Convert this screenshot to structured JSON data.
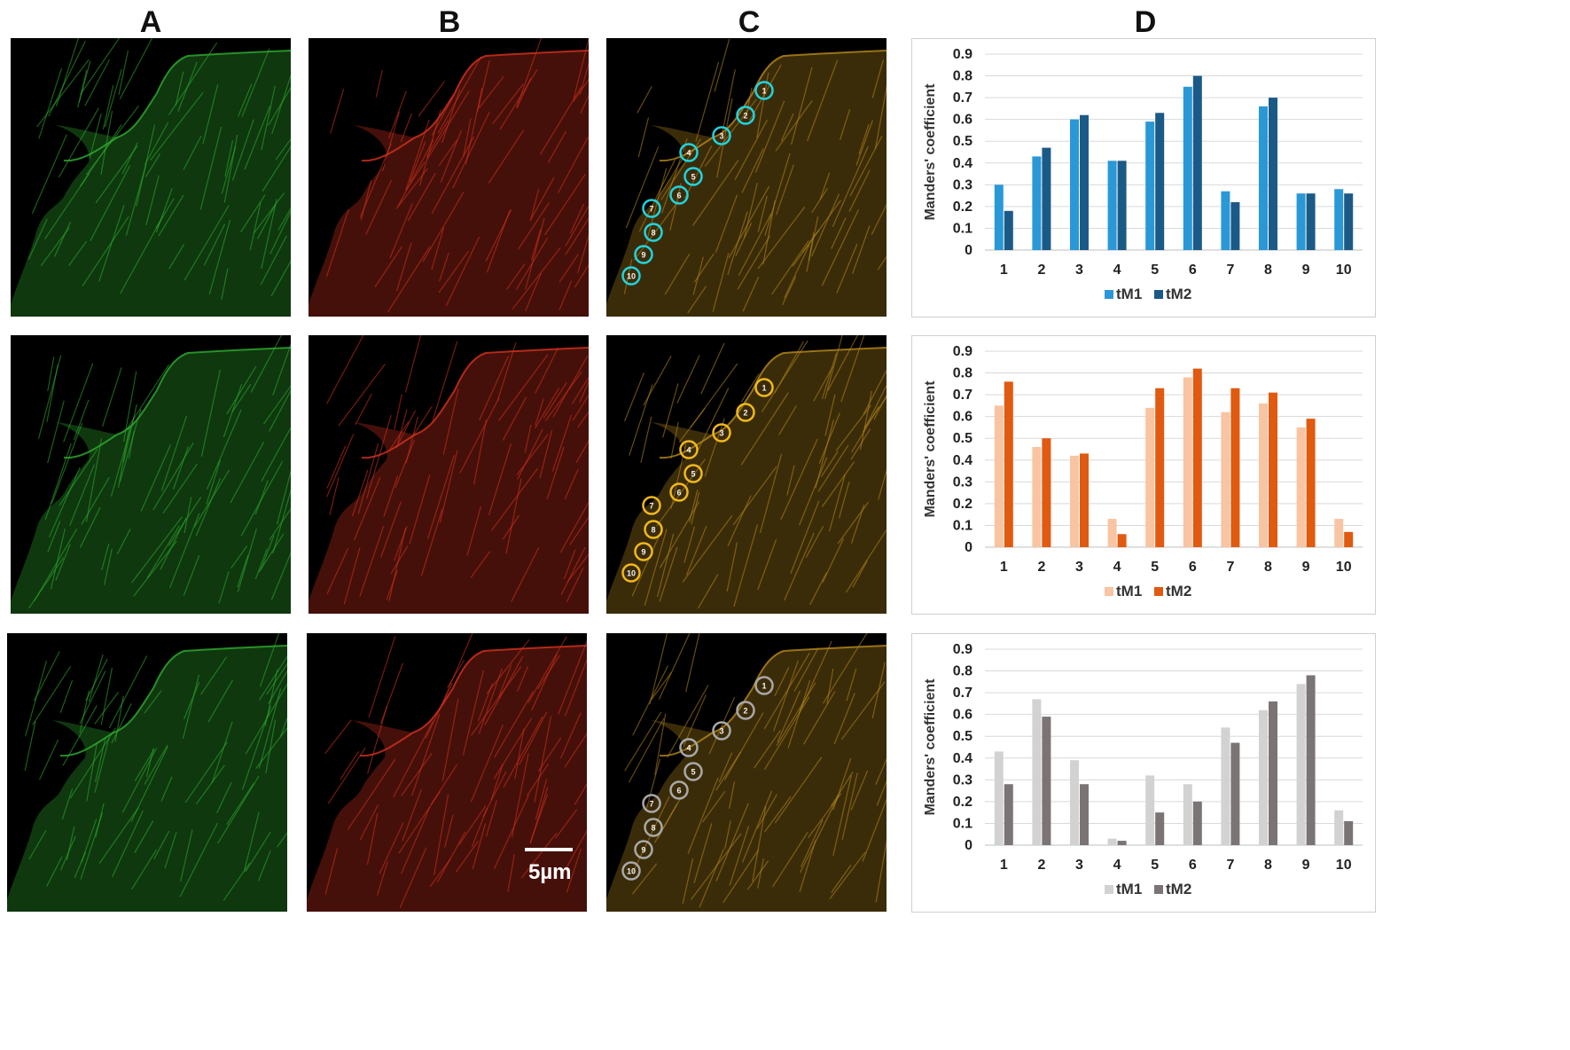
{
  "column_labels": [
    "A",
    "B",
    "C",
    "D"
  ],
  "scale_bar_label": "5µm",
  "roi_labels": [
    "1",
    "2",
    "3",
    "4",
    "5",
    "6",
    "7",
    "8",
    "9",
    "10"
  ],
  "colors": {
    "green_channel": "#2fae2f",
    "red_channel": "#d8321e",
    "merge": "#b88a1c",
    "roi_cyan": "#1fd4e0",
    "roi_yellow": "#f0b81c",
    "roi_gray": "#a8a8a8"
  },
  "chart_data": [
    {
      "type": "bar",
      "ylabel": "Manders' coefficient",
      "ylim": [
        0,
        0.9
      ],
      "yticks": [
        "0",
        "0.1",
        "0.2",
        "0.3",
        "0.4",
        "0.5",
        "0.6",
        "0.7",
        "0.8",
        "0.9"
      ],
      "categories": [
        "1",
        "2",
        "3",
        "4",
        "5",
        "6",
        "7",
        "8",
        "9",
        "10"
      ],
      "series": [
        {
          "name": "tM1",
          "color": "#2a98d6",
          "values": [
            0.3,
            0.43,
            0.6,
            0.41,
            0.59,
            0.75,
            0.27,
            0.66,
            0.26,
            0.28
          ]
        },
        {
          "name": "tM2",
          "color": "#1b5a86",
          "values": [
            0.18,
            0.47,
            0.62,
            0.41,
            0.63,
            0.8,
            0.22,
            0.7,
            0.26,
            0.26
          ]
        }
      ],
      "legend": "bottom-center"
    },
    {
      "type": "bar",
      "ylabel": "Manders' coefficient",
      "ylim": [
        0,
        0.9
      ],
      "yticks": [
        "0",
        "0.1",
        "0.2",
        "0.3",
        "0.4",
        "0.5",
        "0.6",
        "0.7",
        "0.8",
        "0.9"
      ],
      "categories": [
        "1",
        "2",
        "3",
        "4",
        "5",
        "6",
        "7",
        "8",
        "9",
        "10"
      ],
      "series": [
        {
          "name": "tM1",
          "color": "#f8c4a2",
          "values": [
            0.65,
            0.46,
            0.42,
            0.13,
            0.64,
            0.78,
            0.62,
            0.66,
            0.55,
            0.13
          ]
        },
        {
          "name": "tM2",
          "color": "#e05a10",
          "values": [
            0.76,
            0.5,
            0.43,
            0.06,
            0.73,
            0.82,
            0.73,
            0.71,
            0.59,
            0.07
          ]
        }
      ],
      "legend": "bottom-center"
    },
    {
      "type": "bar",
      "ylabel": "Manders' coefficient",
      "ylim": [
        0,
        0.9
      ],
      "yticks": [
        "0",
        "0.1",
        "0.2",
        "0.3",
        "0.4",
        "0.5",
        "0.6",
        "0.7",
        "0.8",
        "0.9"
      ],
      "categories": [
        "1",
        "2",
        "3",
        "4",
        "5",
        "6",
        "7",
        "8",
        "9",
        "10"
      ],
      "series": [
        {
          "name": "tM1",
          "color": "#d2d2d2",
          "values": [
            0.43,
            0.67,
            0.39,
            0.03,
            0.32,
            0.28,
            0.54,
            0.62,
            0.74,
            0.16
          ]
        },
        {
          "name": "tM2",
          "color": "#7b7474",
          "values": [
            0.28,
            0.59,
            0.28,
            0.02,
            0.15,
            0.2,
            0.47,
            0.66,
            0.78,
            0.11
          ]
        }
      ],
      "legend": "bottom-center"
    }
  ]
}
